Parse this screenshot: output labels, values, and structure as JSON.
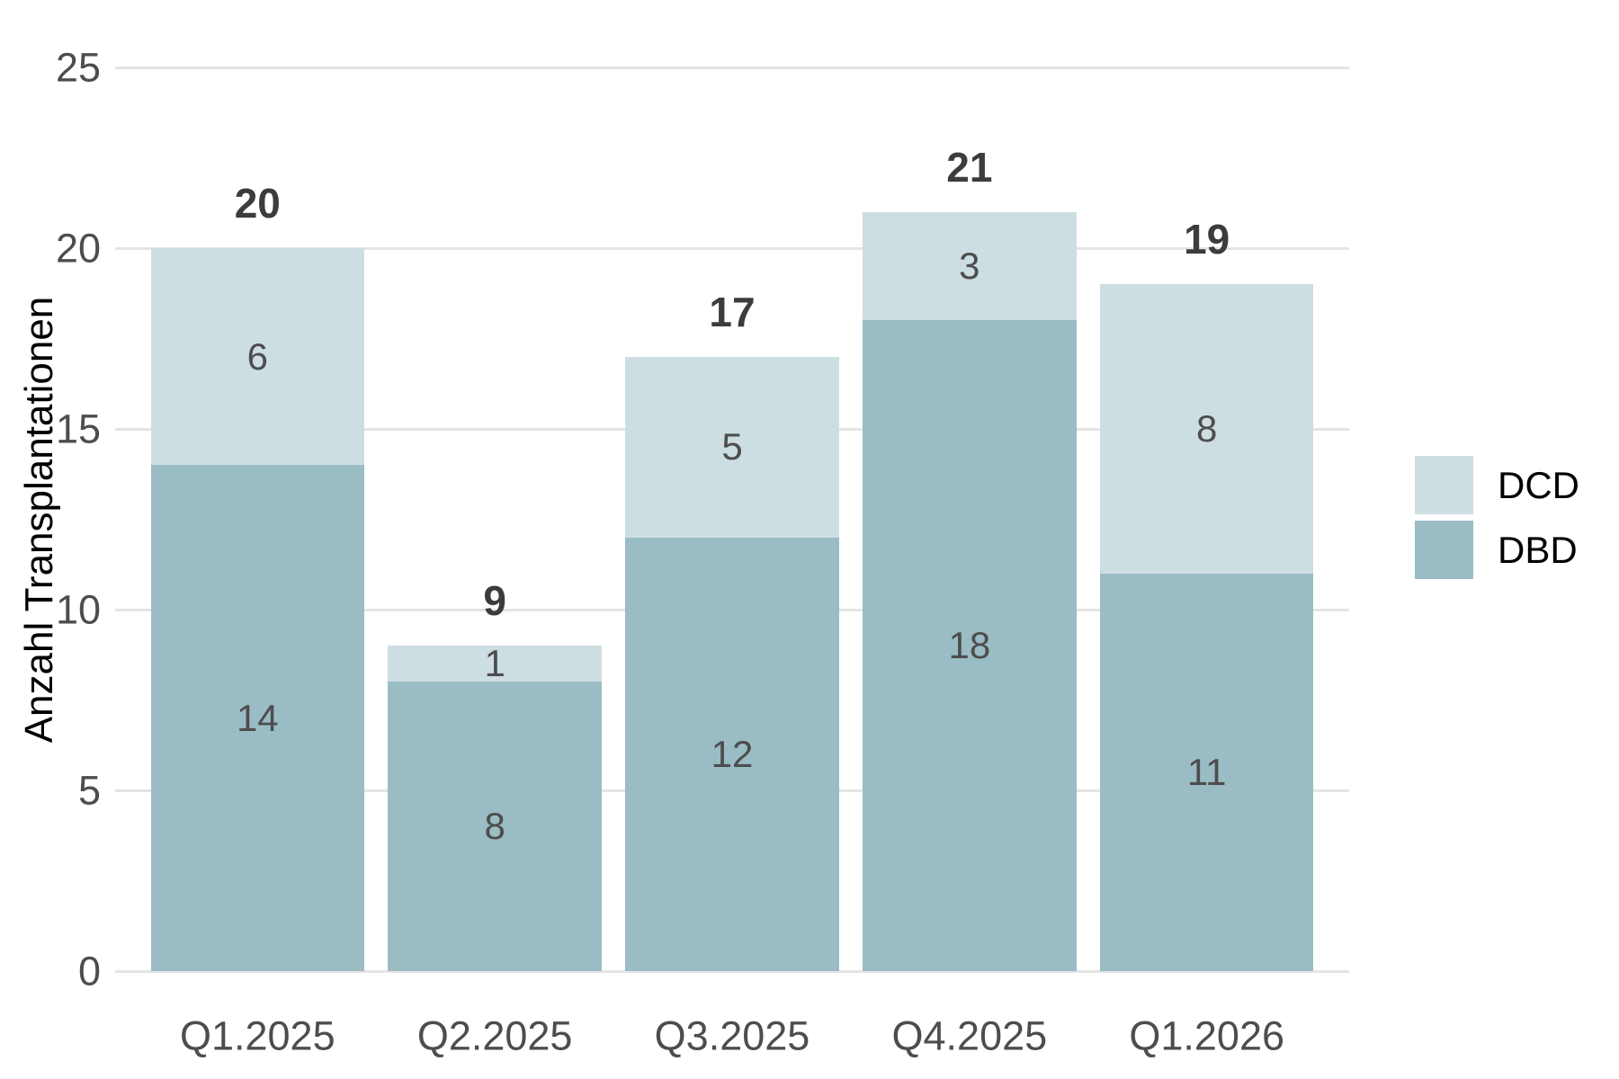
{
  "chart_data": {
    "type": "bar",
    "stacked": true,
    "title": "",
    "xlabel": "",
    "ylabel": "Anzahl Transplantationen",
    "categories": [
      "Q1.2025",
      "Q2.2025",
      "Q3.2025",
      "Q4.2025",
      "Q1.2026"
    ],
    "series": [
      {
        "name": "DBD",
        "color": "#9abcc5",
        "values": [
          14,
          8,
          12,
          18,
          11
        ]
      },
      {
        "name": "DCD",
        "color": "#cddee2",
        "values": [
          6,
          1,
          5,
          3,
          8
        ]
      }
    ],
    "totals": [
      20,
      9,
      17,
      21,
      19
    ],
    "ylim": [
      0,
      25
    ],
    "yticks": [
      0,
      5,
      10,
      15,
      20,
      25
    ],
    "grid": true,
    "legend_position": "right",
    "legend_order": [
      "DCD",
      "DBD"
    ]
  },
  "palette": {
    "dcd_fill": "#cddee2",
    "dbd_fill": "#9abcc5",
    "gridline": "#e4e4e4",
    "tick_text": "#4d4d4d",
    "segment_label_text": "#4d4d4d",
    "total_label_text": "#3c3c3c",
    "legend_text": "#000000",
    "axis_title_text": "#000000",
    "background": "#ffffff"
  }
}
